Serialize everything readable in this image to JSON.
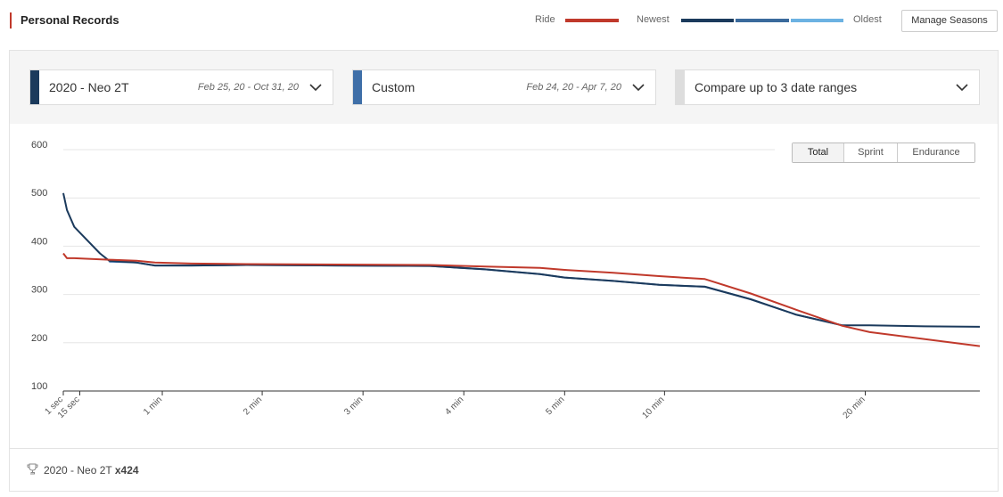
{
  "header": {
    "title": "Personal Records",
    "legend_ride": "Ride",
    "legend_newest": "Newest",
    "legend_oldest": "Oldest",
    "manage_button": "Manage Seasons"
  },
  "colors": {
    "ride": "#c0392b",
    "range1": "#1b3a5c",
    "range2": "#3f6fa8",
    "gradient": [
      "#1b3a5c",
      "#3a6a9c",
      "#6cb2e2"
    ],
    "compare_bar": "#dddddd"
  },
  "selectors": [
    {
      "name": "2020 - Neo 2T",
      "range": "Feb 25, 20 - Oct 31, 20"
    },
    {
      "name": "Custom",
      "range": "Feb 24, 20 - Apr 7, 20"
    },
    {
      "name": "Compare up to 3 date ranges",
      "range": ""
    }
  ],
  "toggle": {
    "total": "Total",
    "sprint": "Sprint",
    "endurance": "Endurance"
  },
  "chart_data": {
    "type": "line",
    "yticks": [
      100,
      200,
      300,
      400,
      500,
      600
    ],
    "ylim": [
      100,
      600
    ],
    "xtick_labels": [
      "1 sec",
      "15 sec",
      "1 min",
      "2 min",
      "3 min",
      "4 min",
      "5 min",
      "10 min",
      "20 min"
    ],
    "grid": true,
    "series": [
      {
        "name": "Ride",
        "color": "#c0392b",
        "values": [
          385,
          375,
          375,
          374,
          372,
          370,
          366,
          364,
          363,
          362,
          361,
          358,
          355,
          351,
          345,
          338,
          332,
          302,
          268,
          235,
          222,
          193
        ]
      },
      {
        "name": "2020 - Neo 2T",
        "color": "#1b3a5c",
        "values": [
          510,
          475,
          440,
          385,
          370,
          366,
          360,
          360,
          361,
          360,
          359,
          352,
          342,
          335,
          328,
          320,
          316,
          290,
          258,
          236,
          236,
          234,
          233
        ]
      },
      {
        "name": "Custom",
        "color": "#3f6fa8",
        "values": [
          368,
          366,
          360,
          360,
          361,
          360,
          359,
          352,
          342,
          335,
          328,
          320,
          316,
          290,
          258,
          236
        ]
      }
    ]
  },
  "footer": {
    "name": "2020 - Neo 2T",
    "count": "x424"
  }
}
